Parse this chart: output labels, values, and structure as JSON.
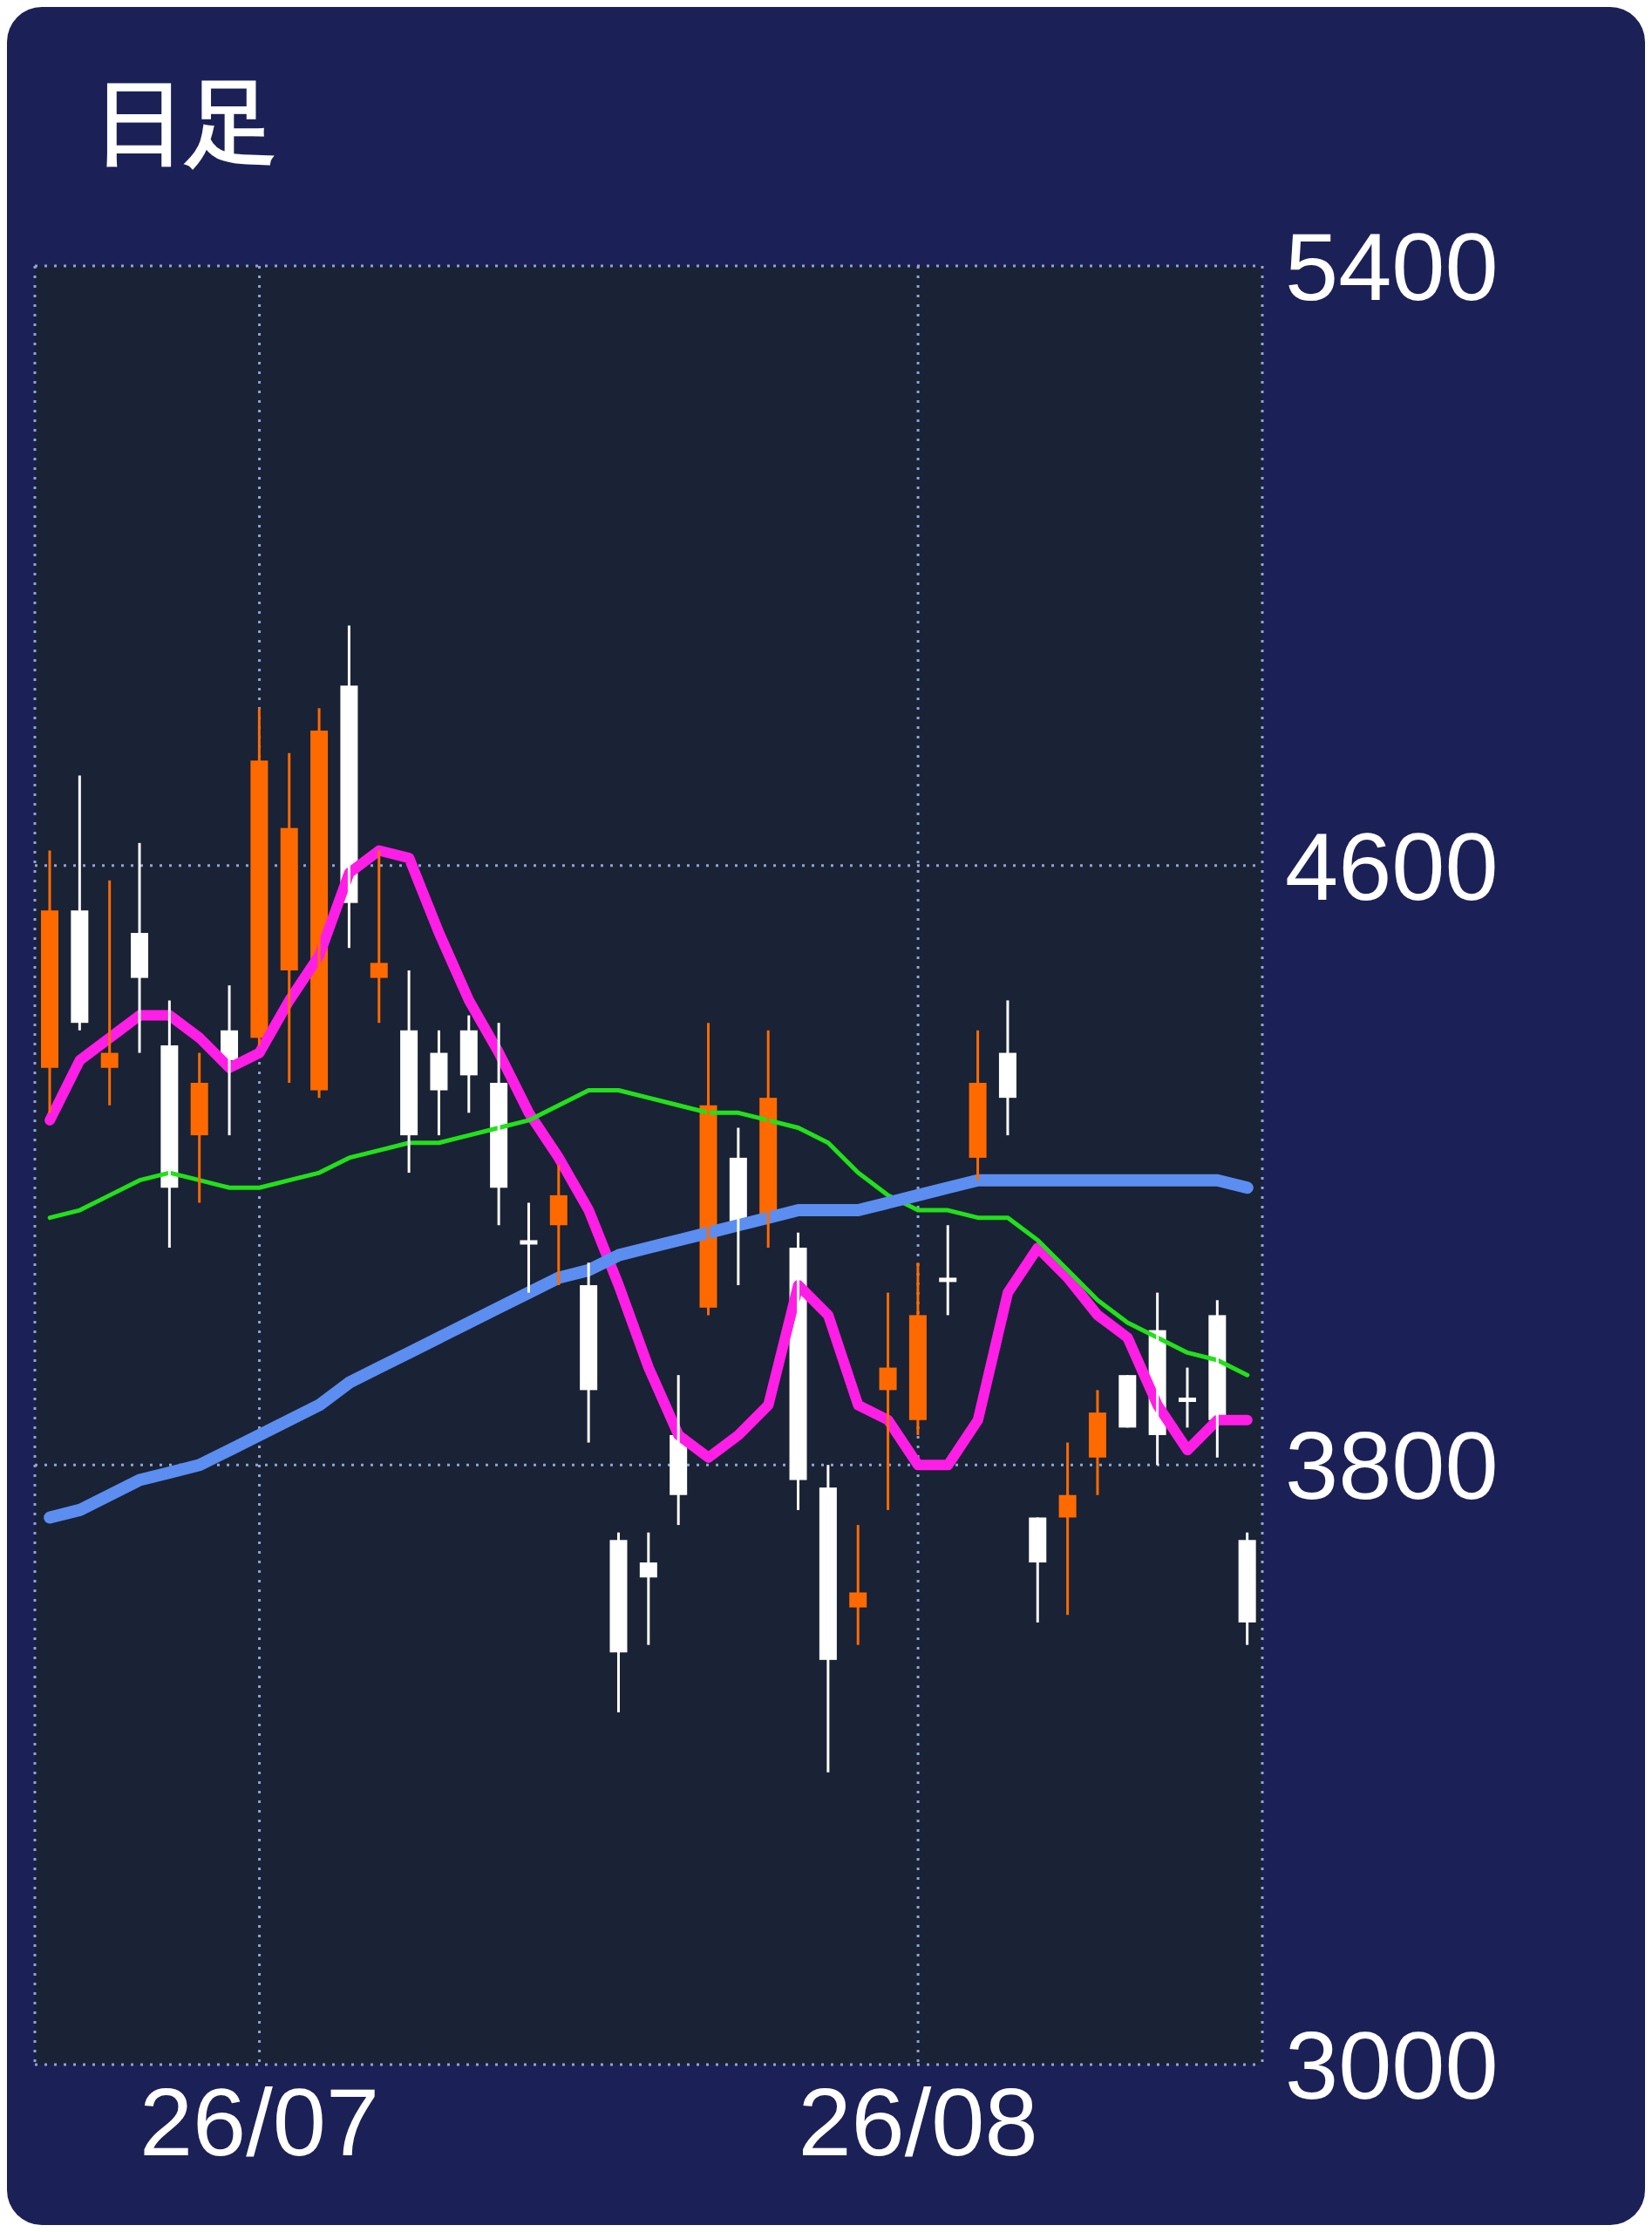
{
  "chart_data": {
    "type": "candlestick",
    "title": "日足",
    "categories": [
      null,
      null,
      null,
      null,
      null,
      null,
      null,
      "26/07",
      null,
      null,
      null,
      null,
      null,
      null,
      null,
      null,
      null,
      null,
      null,
      null,
      null,
      null,
      null,
      null,
      null,
      null,
      null,
      null,
      null,
      "26/08",
      null,
      null,
      null,
      null,
      null,
      null,
      null,
      null,
      null,
      null,
      null
    ],
    "ohlc": [
      [
        4330,
        4620,
        4270,
        4540
      ],
      [
        4540,
        4720,
        4380,
        4390
      ],
      [
        4330,
        4580,
        4280,
        4350
      ],
      [
        4510,
        4630,
        4350,
        4450
      ],
      [
        4360,
        4420,
        4090,
        4170
      ],
      [
        4240,
        4350,
        4150,
        4310
      ],
      [
        4380,
        4440,
        4240,
        4340
      ],
      [
        4370,
        4810,
        4360,
        4740
      ],
      [
        4460,
        4750,
        4310,
        4650
      ],
      [
        4300,
        4810,
        4290,
        4780
      ],
      [
        4840,
        4920,
        4490,
        4550
      ],
      [
        4450,
        4620,
        4390,
        4470
      ],
      [
        4380,
        4460,
        4190,
        4240
      ],
      [
        4350,
        4380,
        4240,
        4300
      ],
      [
        4380,
        4400,
        4270,
        4320
      ],
      [
        4310,
        4390,
        4120,
        4170
      ],
      [
        4100,
        4150,
        4030,
        4100
      ],
      [
        4120,
        4200,
        4040,
        4160
      ],
      [
        4040,
        4070,
        3830,
        3900
      ],
      [
        3700,
        3710,
        3470,
        3550
      ],
      [
        3670,
        3710,
        3560,
        3650
      ],
      [
        3840,
        3920,
        3720,
        3760
      ],
      [
        4010,
        4390,
        4000,
        4280
      ],
      [
        4210,
        4250,
        4040,
        4120
      ],
      [
        4130,
        4380,
        4090,
        4290
      ],
      [
        4090,
        4110,
        3740,
        3780
      ],
      [
        3770,
        3800,
        3390,
        3540
      ],
      [
        3610,
        3720,
        3560,
        3630
      ],
      [
        3900,
        4030,
        3740,
        3930
      ],
      [
        3860,
        4070,
        3840,
        4000
      ],
      [
        4050,
        4120,
        4000,
        4050
      ],
      [
        4210,
        4380,
        4180,
        4310
      ],
      [
        4350,
        4420,
        4240,
        4290
      ],
      [
        3730,
        3730,
        3590,
        3670
      ],
      [
        3730,
        3830,
        3600,
        3760
      ],
      [
        3810,
        3900,
        3760,
        3870
      ],
      [
        3920,
        3920,
        3850,
        3850
      ],
      [
        3980,
        4030,
        3800,
        3840
      ],
      [
        3890,
        3930,
        3850,
        3890
      ],
      [
        4000,
        4020,
        3810,
        3860
      ],
      [
        3700,
        3710,
        3560,
        3590
      ]
    ],
    "colors": [
      "#ff6a00",
      "#ffffff",
      "#ff6a00",
      "#ffffff",
      "#ffffff",
      "#ff6a00",
      "#ffffff",
      "#ff6a00",
      "#ff6a00",
      "#ff6a00",
      "#ffffff",
      "#ff6a00",
      "#ffffff",
      "#ffffff",
      "#ffffff",
      "#ffffff",
      "#ffffff",
      "#ff6a00",
      "#ffffff",
      "#ffffff",
      "#ffffff",
      "#ffffff",
      "#ff6a00",
      "#ffffff",
      "#ff6a00",
      "#ffffff",
      "#ffffff",
      "#ff6a00",
      "#ff6a00",
      "#ff6a00",
      "#ffffff",
      "#ff6a00",
      "#ffffff",
      "#ffffff",
      "#ff6a00",
      "#ff6a00",
      "#ffffff",
      "#ffffff",
      "#ffffff",
      "#ffffff",
      "#ffffff"
    ],
    "series": [
      {
        "type": "line",
        "color": "#ff1ee6",
        "values": [
          4260,
          4340,
          4370,
          4400,
          4400,
          4370,
          4330,
          4350,
          4420,
          4480,
          4590,
          4620,
          4610,
          4510,
          4420,
          4350,
          4270,
          4210,
          4140,
          4040,
          3930,
          3840,
          3810,
          3840,
          3880,
          4040,
          4000,
          3880,
          3860,
          3800,
          3800,
          3860,
          4030,
          4090,
          4050,
          4000,
          3970,
          3880,
          3820,
          3860,
          3860
        ]
      },
      {
        "type": "line",
        "color": "#22e01a",
        "values": [
          4130,
          4140,
          4160,
          4180,
          4190,
          4180,
          4170,
          4170,
          4180,
          4190,
          4210,
          4220,
          4230,
          4230,
          4240,
          4250,
          4260,
          4280,
          4300,
          4300,
          4290,
          4280,
          4270,
          4270,
          4260,
          4250,
          4230,
          4190,
          4160,
          4140,
          4140,
          4130,
          4130,
          4100,
          4060,
          4020,
          3990,
          3970,
          3950,
          3940,
          3920
        ]
      },
      {
        "type": "line",
        "color": "#5b8ef0",
        "values": [
          3730,
          3740,
          3760,
          3780,
          3790,
          3800,
          3820,
          3840,
          3860,
          3880,
          3910,
          3930,
          3950,
          3970,
          3990,
          4010,
          4030,
          4050,
          4060,
          4080,
          4090,
          4100,
          4110,
          4120,
          4130,
          4140,
          4140,
          4140,
          4150,
          4160,
          4170,
          4180,
          4180,
          4180,
          4180,
          4180,
          4180,
          4180,
          4180,
          4180,
          4170
        ]
      }
    ],
    "ylim": [
      3000,
      5400
    ],
    "yticks": [
      3000,
      3800,
      4600,
      5400
    ],
    "grid": true,
    "marker": "none"
  }
}
